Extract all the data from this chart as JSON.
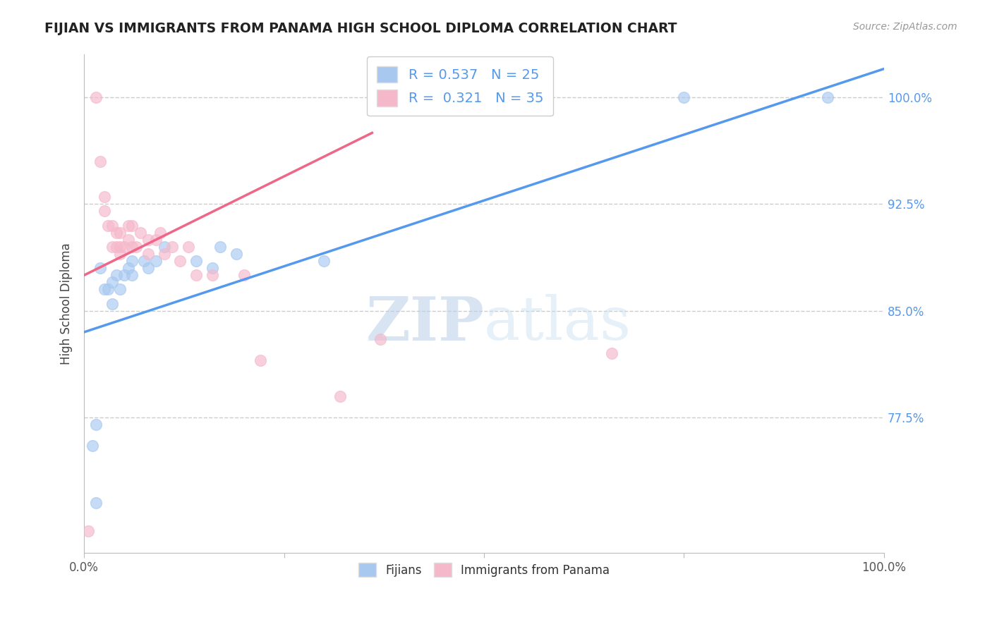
{
  "title": "FIJIAN VS IMMIGRANTS FROM PANAMA HIGH SCHOOL DIPLOMA CORRELATION CHART",
  "source": "Source: ZipAtlas.com",
  "ylabel": "High School Diploma",
  "xlim": [
    0.0,
    100.0
  ],
  "ylim": [
    0.68,
    1.03
  ],
  "xtick_positions": [
    0.0,
    25.0,
    50.0,
    75.0,
    100.0
  ],
  "xtick_labels": [
    "0.0%",
    "",
    "",
    "",
    "100.0%"
  ],
  "ytick_values_right": [
    1.0,
    0.925,
    0.85,
    0.775
  ],
  "ytick_labels_right": [
    "100.0%",
    "92.5%",
    "85.0%",
    "77.5%"
  ],
  "watermark_zip": "ZIP",
  "watermark_atlas": "atlas",
  "fijian_color": "#a8c8f0",
  "panama_color": "#f5b8cb",
  "fijian_line_color": "#5599ee",
  "panama_line_color": "#ee6688",
  "background_color": "#ffffff",
  "grid_color": "#cccccc",
  "fijian_R": "0.537",
  "fijian_N": "25",
  "panama_R": "0.321",
  "panama_N": "35",
  "legend_label_fijian": "Fijians",
  "legend_label_panama": "Immigrants from Panama",
  "fijian_scatter_x": [
    1.0,
    1.5,
    1.5,
    2.0,
    2.5,
    3.0,
    3.5,
    3.5,
    4.0,
    4.5,
    5.0,
    5.5,
    6.0,
    6.0,
    7.5,
    8.0,
    9.0,
    10.0,
    14.0,
    16.0,
    17.0,
    19.0,
    30.0,
    75.0,
    93.0
  ],
  "fijian_scatter_y": [
    0.755,
    0.715,
    0.77,
    0.88,
    0.865,
    0.865,
    0.87,
    0.855,
    0.875,
    0.865,
    0.875,
    0.88,
    0.875,
    0.885,
    0.885,
    0.88,
    0.885,
    0.895,
    0.885,
    0.88,
    0.895,
    0.89,
    0.885,
    1.0,
    1.0
  ],
  "panama_scatter_x": [
    0.5,
    1.5,
    2.0,
    2.5,
    2.5,
    3.0,
    3.5,
    3.5,
    4.0,
    4.0,
    4.5,
    4.5,
    4.5,
    5.0,
    5.5,
    5.5,
    6.0,
    6.0,
    6.5,
    7.0,
    8.0,
    8.0,
    9.0,
    9.5,
    10.0,
    11.0,
    12.0,
    13.0,
    14.0,
    16.0,
    20.0,
    22.0,
    32.0,
    37.0,
    66.0
  ],
  "panama_scatter_y": [
    0.695,
    1.0,
    0.955,
    0.93,
    0.92,
    0.91,
    0.91,
    0.895,
    0.895,
    0.905,
    0.89,
    0.895,
    0.905,
    0.895,
    0.9,
    0.91,
    0.895,
    0.91,
    0.895,
    0.905,
    0.9,
    0.89,
    0.9,
    0.905,
    0.89,
    0.895,
    0.885,
    0.895,
    0.875,
    0.875,
    0.875,
    0.815,
    0.79,
    0.83,
    0.82
  ],
  "fijian_line_x": [
    0.0,
    100.0
  ],
  "fijian_line_y": [
    0.835,
    1.02
  ],
  "panama_line_x": [
    0.0,
    36.0
  ],
  "panama_line_y": [
    0.875,
    0.975
  ]
}
